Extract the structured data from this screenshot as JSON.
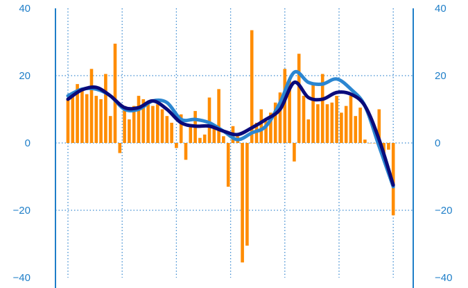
{
  "chart_data": {
    "type": "bar",
    "title": "",
    "xlabel": "",
    "ylabel": "",
    "ylim": [
      -40,
      40
    ],
    "y_ticks": [
      40,
      20,
      0,
      -20,
      -40
    ],
    "y_tick_labels": [
      "40",
      "20",
      "0",
      "−20",
      "−40"
    ],
    "x_gridlines": 7,
    "grid": true,
    "colors": {
      "bars": "#ff8c00",
      "line_dark": "#0a0a7a",
      "line_light": "#2b86d1",
      "axis": "#1e7ec8",
      "grid": "#3a8ad0"
    },
    "series": [
      {
        "type": "bar",
        "values": [
          13,
          15,
          17.5,
          16,
          14.5,
          22,
          14,
          13,
          20.5,
          8,
          29.5,
          -3,
          11,
          7,
          11,
          14,
          13,
          12,
          11,
          11.5,
          10,
          8,
          6,
          -1.5,
          8.5,
          -5,
          5,
          9.5,
          1.5,
          2.5,
          13.5,
          5.5,
          16,
          2,
          -13,
          5,
          2,
          -35.5,
          -30.5,
          33.5,
          6,
          10,
          6.5,
          9,
          12,
          15,
          22,
          19,
          -5.5,
          26.5,
          14,
          7,
          18,
          11.5,
          20.5,
          11.5,
          12,
          14,
          9,
          11,
          14,
          8,
          10.5,
          1,
          0,
          0,
          10,
          -4,
          -2,
          -21.5
        ]
      },
      {
        "type": "line",
        "x": [
          0,
          3,
          6,
          9,
          12,
          15,
          18,
          21,
          24,
          27,
          30,
          33,
          36,
          39,
          42,
          45,
          48,
          51,
          54,
          57,
          60,
          63,
          66,
          69
        ],
        "values": [
          13,
          15.8,
          16.5,
          14,
          10.5,
          10.5,
          12.5,
          10,
          6,
          5,
          5,
          3.5,
          2.5,
          4.5,
          7,
          10,
          18,
          13.5,
          13,
          15,
          14.5,
          11,
          1,
          -12.5
        ]
      },
      {
        "type": "line",
        "x": [
          0,
          3,
          6,
          9,
          12,
          15,
          18,
          21,
          24,
          27,
          30,
          33,
          36,
          39,
          42,
          45,
          48,
          51,
          54,
          57,
          60,
          63,
          66,
          69
        ],
        "values": [
          14,
          16,
          16,
          14,
          10,
          10,
          12.5,
          12,
          7,
          7,
          6,
          3.5,
          1,
          3,
          5,
          12,
          21,
          18,
          17.5,
          19,
          16,
          11,
          -1,
          -13
        ]
      }
    ]
  }
}
